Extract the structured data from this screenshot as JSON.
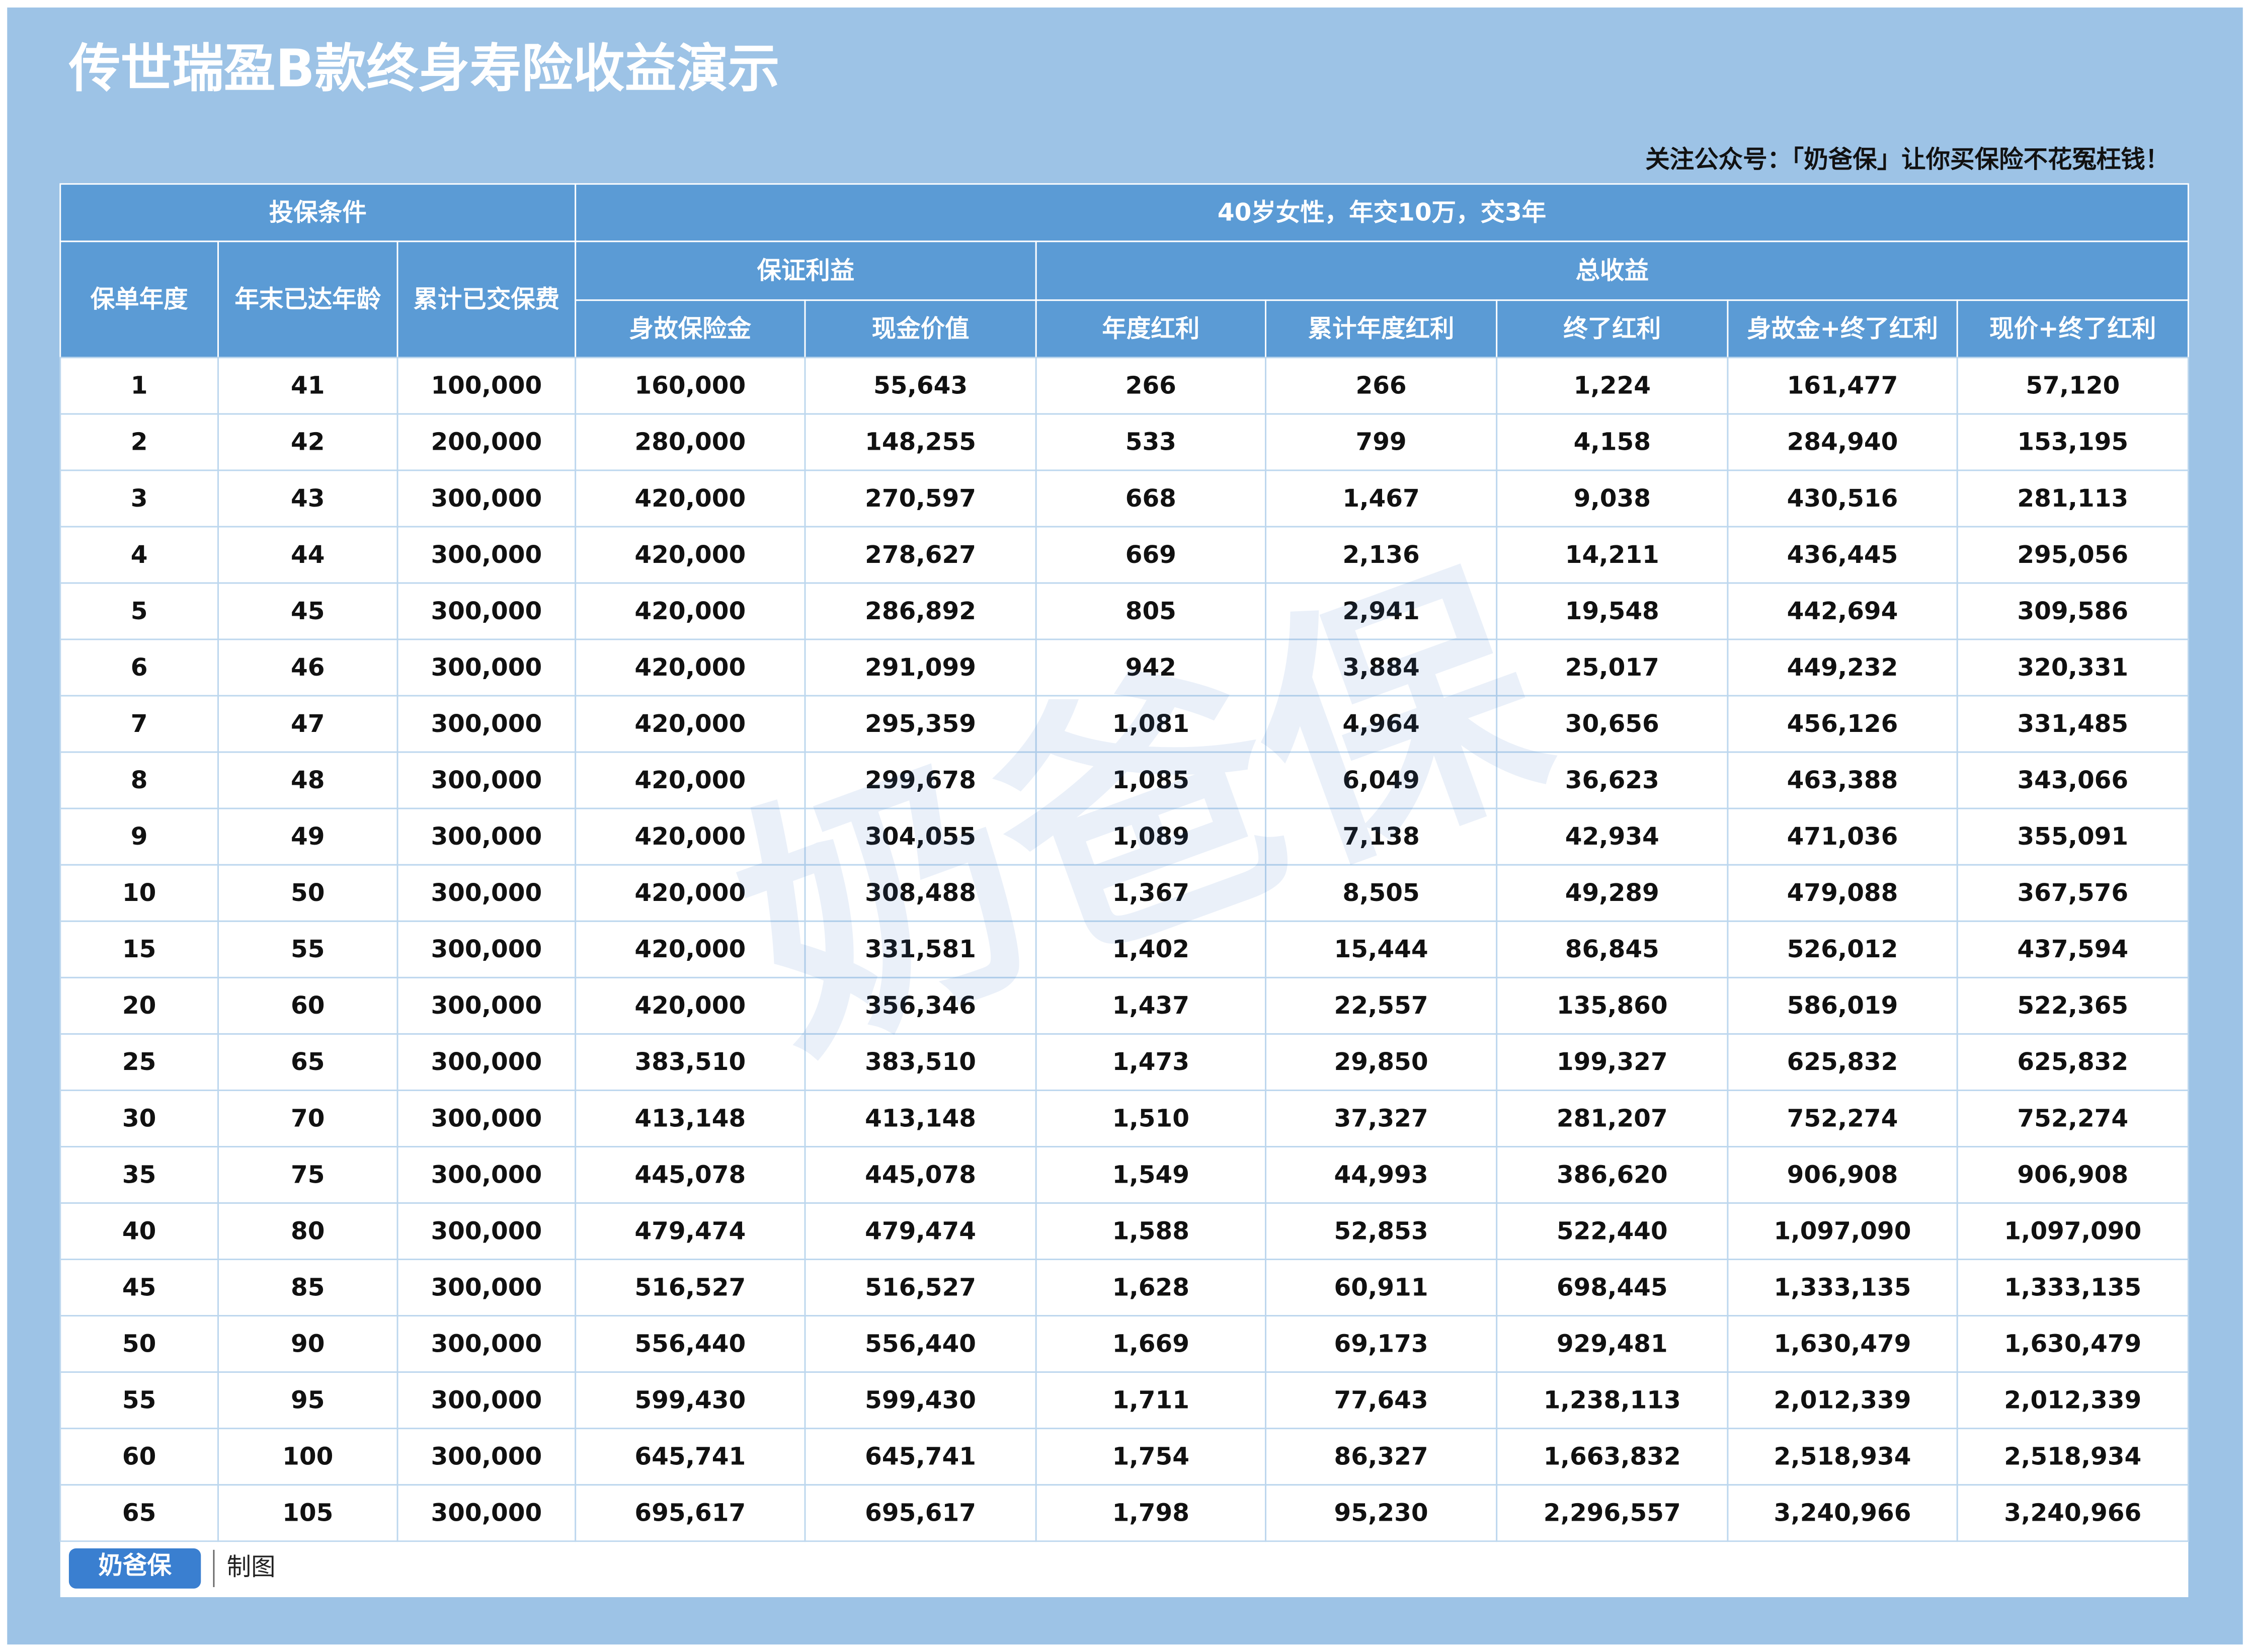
{
  "header": {
    "title": "传世瑞盈B款终身寿险收益演示",
    "subtitle": "关注公众号：「奶爸保」让你买保险不花冤枉钱！"
  },
  "table": {
    "group_headers": [
      "投保条件",
      "40岁女性，年交10万，交3年"
    ],
    "sub_groups": [
      "保证利益",
      "总收益"
    ],
    "columns": [
      "保单年度",
      "年末已达年龄",
      "累计已交保费",
      "身故保险金",
      "现金价值",
      "年度红利",
      "累计年度红利",
      "终了红利",
      "身故金+终了红利",
      "现价+终了红利"
    ],
    "rows": [
      [
        "1",
        "41",
        "100,000",
        "160,000",
        "55,643",
        "266",
        "266",
        "1,224",
        "161,477",
        "57,120"
      ],
      [
        "2",
        "42",
        "200,000",
        "280,000",
        "148,255",
        "533",
        "799",
        "4,158",
        "284,940",
        "153,195"
      ],
      [
        "3",
        "43",
        "300,000",
        "420,000",
        "270,597",
        "668",
        "1,467",
        "9,038",
        "430,516",
        "281,113"
      ],
      [
        "4",
        "44",
        "300,000",
        "420,000",
        "278,627",
        "669",
        "2,136",
        "14,211",
        "436,445",
        "295,056"
      ],
      [
        "5",
        "45",
        "300,000",
        "420,000",
        "286,892",
        "805",
        "2,941",
        "19,548",
        "442,694",
        "309,586"
      ],
      [
        "6",
        "46",
        "300,000",
        "420,000",
        "291,099",
        "942",
        "3,884",
        "25,017",
        "449,232",
        "320,331"
      ],
      [
        "7",
        "47",
        "300,000",
        "420,000",
        "295,359",
        "1,081",
        "4,964",
        "30,656",
        "456,126",
        "331,485"
      ],
      [
        "8",
        "48",
        "300,000",
        "420,000",
        "299,678",
        "1,085",
        "6,049",
        "36,623",
        "463,388",
        "343,066"
      ],
      [
        "9",
        "49",
        "300,000",
        "420,000",
        "304,055",
        "1,089",
        "7,138",
        "42,934",
        "471,036",
        "355,091"
      ],
      [
        "10",
        "50",
        "300,000",
        "420,000",
        "308,488",
        "1,367",
        "8,505",
        "49,289",
        "479,088",
        "367,576"
      ],
      [
        "15",
        "55",
        "300,000",
        "420,000",
        "331,581",
        "1,402",
        "15,444",
        "86,845",
        "526,012",
        "437,594"
      ],
      [
        "20",
        "60",
        "300,000",
        "420,000",
        "356,346",
        "1,437",
        "22,557",
        "135,860",
        "586,019",
        "522,365"
      ],
      [
        "25",
        "65",
        "300,000",
        "383,510",
        "383,510",
        "1,473",
        "29,850",
        "199,327",
        "625,832",
        "625,832"
      ],
      [
        "30",
        "70",
        "300,000",
        "413,148",
        "413,148",
        "1,510",
        "37,327",
        "281,207",
        "752,274",
        "752,274"
      ],
      [
        "35",
        "75",
        "300,000",
        "445,078",
        "445,078",
        "1,549",
        "44,993",
        "386,620",
        "906,908",
        "906,908"
      ],
      [
        "40",
        "80",
        "300,000",
        "479,474",
        "479,474",
        "1,588",
        "52,853",
        "522,440",
        "1,097,090",
        "1,097,090"
      ],
      [
        "45",
        "85",
        "300,000",
        "516,527",
        "516,527",
        "1,628",
        "60,911",
        "698,445",
        "1,333,135",
        "1,333,135"
      ],
      [
        "50",
        "90",
        "300,000",
        "556,440",
        "556,440",
        "1,669",
        "69,173",
        "929,481",
        "1,630,479",
        "1,630,479"
      ],
      [
        "55",
        "95",
        "300,000",
        "599,430",
        "599,430",
        "1,711",
        "77,643",
        "1,238,113",
        "2,012,339",
        "2,012,339"
      ],
      [
        "60",
        "100",
        "300,000",
        "645,741",
        "645,741",
        "1,754",
        "86,327",
        "1,663,832",
        "2,518,934",
        "2,518,934"
      ],
      [
        "65",
        "105",
        "300,000",
        "695,617",
        "695,617",
        "1,798",
        "95,230",
        "2,296,557",
        "3,240,966",
        "3,240,966"
      ]
    ]
  },
  "watermark": "奶爸保",
  "footer": {
    "logo": "奶爸保",
    "caption": "制图"
  }
}
